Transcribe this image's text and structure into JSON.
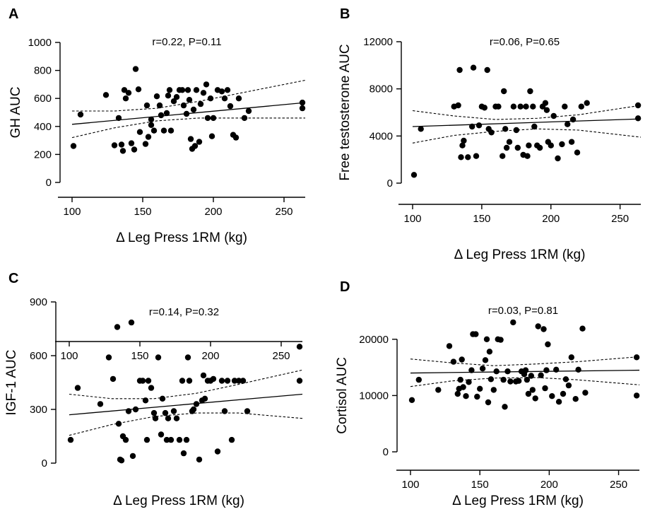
{
  "chart_data": [
    {
      "type": "scatter",
      "panel": "A",
      "annotation": "r=0.22, P=0.11",
      "xlabel": "Δ Leg Press 1RM (kg)",
      "ylabel": "GH AUC",
      "xlim": [
        75,
        265
      ],
      "ylim": [
        0,
        1000
      ],
      "xticks": [
        100,
        150,
        200,
        250
      ],
      "yticks": [
        0,
        200,
        400,
        600,
        800,
        1000
      ],
      "fit": {
        "x": [
          100,
          265
        ],
        "y": [
          415,
          570
        ]
      },
      "ci_upper": {
        "x": [
          100,
          130,
          160,
          190,
          220,
          265
        ],
        "y": [
          510,
          510,
          530,
          580,
          640,
          730
        ]
      },
      "ci_lower": {
        "x": [
          100,
          130,
          160,
          190,
          220,
          265
        ],
        "y": [
          320,
          390,
          440,
          460,
          460,
          460
        ]
      },
      "points": [
        [
          101,
          260
        ],
        [
          106,
          485
        ],
        [
          124,
          625
        ],
        [
          130,
          265
        ],
        [
          133,
          460
        ],
        [
          135,
          270
        ],
        [
          136,
          225
        ],
        [
          137,
          660
        ],
        [
          138,
          600
        ],
        [
          140,
          640
        ],
        [
          142,
          280
        ],
        [
          144,
          235
        ],
        [
          145,
          810
        ],
        [
          147,
          665
        ],
        [
          148,
          360
        ],
        [
          152,
          275
        ],
        [
          153,
          550
        ],
        [
          154,
          325
        ],
        [
          156,
          450
        ],
        [
          156,
          410
        ],
        [
          158,
          370
        ],
        [
          160,
          615
        ],
        [
          162,
          550
        ],
        [
          163,
          480
        ],
        [
          165,
          370
        ],
        [
          167,
          495
        ],
        [
          168,
          620
        ],
        [
          169,
          660
        ],
        [
          170,
          370
        ],
        [
          172,
          580
        ],
        [
          174,
          610
        ],
        [
          176,
          660
        ],
        [
          178,
          660
        ],
        [
          179,
          550
        ],
        [
          181,
          490
        ],
        [
          182,
          660
        ],
        [
          183,
          590
        ],
        [
          184,
          310
        ],
        [
          185,
          240
        ],
        [
          186,
          520
        ],
        [
          187,
          260
        ],
        [
          188,
          660
        ],
        [
          190,
          290
        ],
        [
          191,
          560
        ],
        [
          193,
          640
        ],
        [
          195,
          700
        ],
        [
          196,
          460
        ],
        [
          198,
          600
        ],
        [
          199,
          330
        ],
        [
          200,
          460
        ],
        [
          203,
          660
        ],
        [
          206,
          650
        ],
        [
          208,
          600
        ],
        [
          210,
          660
        ],
        [
          212,
          545
        ],
        [
          214,
          340
        ],
        [
          216,
          320
        ],
        [
          218,
          600
        ],
        [
          222,
          460
        ],
        [
          225,
          510
        ],
        [
          263,
          570
        ],
        [
          263,
          530
        ]
      ]
    },
    {
      "type": "scatter",
      "panel": "B",
      "annotation": "r=0.06, P=0.65",
      "xlabel": "Δ Leg Press 1RM (kg)",
      "ylabel": "Free testosterone AUC",
      "xlim": [
        75,
        265
      ],
      "ylim": [
        0,
        12000
      ],
      "xticks": [
        100,
        150,
        200,
        250
      ],
      "yticks": [
        0,
        4000,
        8000,
        12000
      ],
      "fit": {
        "x": [
          100,
          265
        ],
        "y": [
          4800,
          5450
        ]
      },
      "ci_upper": {
        "x": [
          100,
          130,
          160,
          190,
          220,
          265
        ],
        "y": [
          6150,
          5700,
          5400,
          5500,
          5800,
          6600
        ]
      },
      "ci_lower": {
        "x": [
          100,
          130,
          160,
          190,
          220,
          265
        ],
        "y": [
          3400,
          4050,
          4400,
          4600,
          4500,
          3900
        ]
      },
      "points": [
        [
          101,
          700
        ],
        [
          106,
          4600
        ],
        [
          130,
          6500
        ],
        [
          133,
          6600
        ],
        [
          134,
          9600
        ],
        [
          135,
          2200
        ],
        [
          136,
          3200
        ],
        [
          137,
          3600
        ],
        [
          140,
          2200
        ],
        [
          143,
          4800
        ],
        [
          144,
          9800
        ],
        [
          146,
          2300
        ],
        [
          148,
          4900
        ],
        [
          150,
          6500
        ],
        [
          152,
          6400
        ],
        [
          154,
          9600
        ],
        [
          155,
          4600
        ],
        [
          157,
          4300
        ],
        [
          160,
          6500
        ],
        [
          162,
          6500
        ],
        [
          165,
          2300
        ],
        [
          166,
          7800
        ],
        [
          167,
          4600
        ],
        [
          168,
          3000
        ],
        [
          170,
          3500
        ],
        [
          173,
          6500
        ],
        [
          175,
          4500
        ],
        [
          176,
          3000
        ],
        [
          178,
          6500
        ],
        [
          180,
          2400
        ],
        [
          182,
          6500
        ],
        [
          183,
          2300
        ],
        [
          184,
          3200
        ],
        [
          185,
          7800
        ],
        [
          187,
          6500
        ],
        [
          188,
          4800
        ],
        [
          190,
          3200
        ],
        [
          192,
          3000
        ],
        [
          194,
          6500
        ],
        [
          196,
          6800
        ],
        [
          197,
          6200
        ],
        [
          198,
          3500
        ],
        [
          200,
          3200
        ],
        [
          202,
          5700
        ],
        [
          205,
          2100
        ],
        [
          208,
          3300
        ],
        [
          210,
          6500
        ],
        [
          212,
          5000
        ],
        [
          215,
          3500
        ],
        [
          216,
          5400
        ],
        [
          219,
          2600
        ],
        [
          222,
          6500
        ],
        [
          226,
          6800
        ],
        [
          263,
          6600
        ],
        [
          263,
          5500
        ]
      ]
    },
    {
      "type": "scatter",
      "panel": "C",
      "annotation": "r=0.14, P=0.32",
      "xlabel": "Δ Leg Press 1RM (kg)",
      "ylabel": "IGF-1 AUC",
      "xlim": [
        75,
        265
      ],
      "ylim": [
        0,
        900
      ],
      "xticks": [
        100,
        150,
        200,
        250
      ],
      "yticks": [
        0,
        300,
        600,
        900
      ],
      "fit": {
        "x": [
          100,
          265
        ],
        "y": [
          270,
          385
        ]
      },
      "ci_upper": {
        "x": [
          100,
          130,
          160,
          190,
          220,
          265
        ],
        "y": [
          385,
          360,
          360,
          390,
          440,
          520
        ]
      },
      "ci_lower": {
        "x": [
          100,
          130,
          160,
          190,
          220,
          265
        ],
        "y": [
          155,
          215,
          260,
          280,
          280,
          250
        ]
      },
      "points": [
        [
          101,
          130
        ],
        [
          106,
          420
        ],
        [
          122,
          330
        ],
        [
          128,
          590
        ],
        [
          131,
          470
        ],
        [
          134,
          760
        ],
        [
          135,
          220
        ],
        [
          136,
          20
        ],
        [
          137,
          15
        ],
        [
          138,
          150
        ],
        [
          140,
          130
        ],
        [
          142,
          290
        ],
        [
          144,
          785
        ],
        [
          145,
          40
        ],
        [
          147,
          300
        ],
        [
          150,
          460
        ],
        [
          152,
          460
        ],
        [
          154,
          350
        ],
        [
          155,
          130
        ],
        [
          156,
          460
        ],
        [
          158,
          420
        ],
        [
          160,
          280
        ],
        [
          161,
          250
        ],
        [
          163,
          590
        ],
        [
          165,
          160
        ],
        [
          166,
          360
        ],
        [
          168,
          280
        ],
        [
          169,
          130
        ],
        [
          170,
          250
        ],
        [
          172,
          130
        ],
        [
          174,
          290
        ],
        [
          176,
          250
        ],
        [
          178,
          130
        ],
        [
          180,
          460
        ],
        [
          181,
          55
        ],
        [
          183,
          130
        ],
        [
          184,
          590
        ],
        [
          185,
          460
        ],
        [
          187,
          290
        ],
        [
          188,
          300
        ],
        [
          190,
          330
        ],
        [
          192,
          20
        ],
        [
          194,
          350
        ],
        [
          195,
          490
        ],
        [
          196,
          360
        ],
        [
          198,
          460
        ],
        [
          200,
          460
        ],
        [
          202,
          470
        ],
        [
          205,
          65
        ],
        [
          208,
          460
        ],
        [
          210,
          290
        ],
        [
          212,
          460
        ],
        [
          215,
          130
        ],
        [
          217,
          460
        ],
        [
          220,
          460
        ],
        [
          223,
          460
        ],
        [
          226,
          290
        ],
        [
          263,
          650
        ],
        [
          263,
          460
        ]
      ]
    },
    {
      "type": "scatter",
      "panel": "D",
      "annotation": "r=0.03, P=0.81",
      "xlabel": "Δ Leg Press 1RM (kg)",
      "ylabel": "Cortisol AUC",
      "xlim": [
        75,
        265
      ],
      "ylim": [
        0,
        25000
      ],
      "xticks": [
        100,
        150,
        200,
        250
      ],
      "yticks": [
        0,
        10000,
        20000
      ],
      "fit": {
        "x": [
          100,
          265
        ],
        "y": [
          14000,
          14500
        ]
      },
      "ci_upper": {
        "x": [
          100,
          130,
          160,
          190,
          220,
          265
        ],
        "y": [
          16500,
          15800,
          15300,
          15600,
          16000,
          16900
        ]
      },
      "ci_lower": {
        "x": [
          100,
          130,
          160,
          190,
          220,
          265
        ],
        "y": [
          11600,
          12600,
          13100,
          13200,
          12800,
          11900
        ]
      },
      "points": [
        [
          101,
          9200
        ],
        [
          106,
          12800
        ],
        [
          120,
          11000
        ],
        [
          128,
          18800
        ],
        [
          131,
          16000
        ],
        [
          134,
          10300
        ],
        [
          135,
          11200
        ],
        [
          136,
          12800
        ],
        [
          137,
          16400
        ],
        [
          138,
          11500
        ],
        [
          140,
          9900
        ],
        [
          142,
          12400
        ],
        [
          144,
          14500
        ],
        [
          145,
          20900
        ],
        [
          147,
          20900
        ],
        [
          148,
          9800
        ],
        [
          150,
          11200
        ],
        [
          152,
          14800
        ],
        [
          154,
          16300
        ],
        [
          155,
          20000
        ],
        [
          156,
          8800
        ],
        [
          157,
          17800
        ],
        [
          158,
          12900
        ],
        [
          160,
          11000
        ],
        [
          162,
          14300
        ],
        [
          163,
          20000
        ],
        [
          165,
          19900
        ],
        [
          167,
          12800
        ],
        [
          168,
          8000
        ],
        [
          170,
          14300
        ],
        [
          172,
          12500
        ],
        [
          174,
          23000
        ],
        [
          176,
          12500
        ],
        [
          178,
          12600
        ],
        [
          180,
          14300
        ],
        [
          182,
          13800
        ],
        [
          183,
          14500
        ],
        [
          184,
          12800
        ],
        [
          185,
          10300
        ],
        [
          187,
          13500
        ],
        [
          188,
          11000
        ],
        [
          190,
          9500
        ],
        [
          192,
          22300
        ],
        [
          194,
          13600
        ],
        [
          196,
          21800
        ],
        [
          197,
          11300
        ],
        [
          198,
          14500
        ],
        [
          199,
          19100
        ],
        [
          202,
          9900
        ],
        [
          205,
          14600
        ],
        [
          207,
          8900
        ],
        [
          210,
          10300
        ],
        [
          212,
          12900
        ],
        [
          214,
          11800
        ],
        [
          216,
          16800
        ],
        [
          219,
          9400
        ],
        [
          221,
          14600
        ],
        [
          224,
          21900
        ],
        [
          226,
          10500
        ],
        [
          263,
          16800
        ],
        [
          263,
          10000
        ]
      ]
    }
  ]
}
